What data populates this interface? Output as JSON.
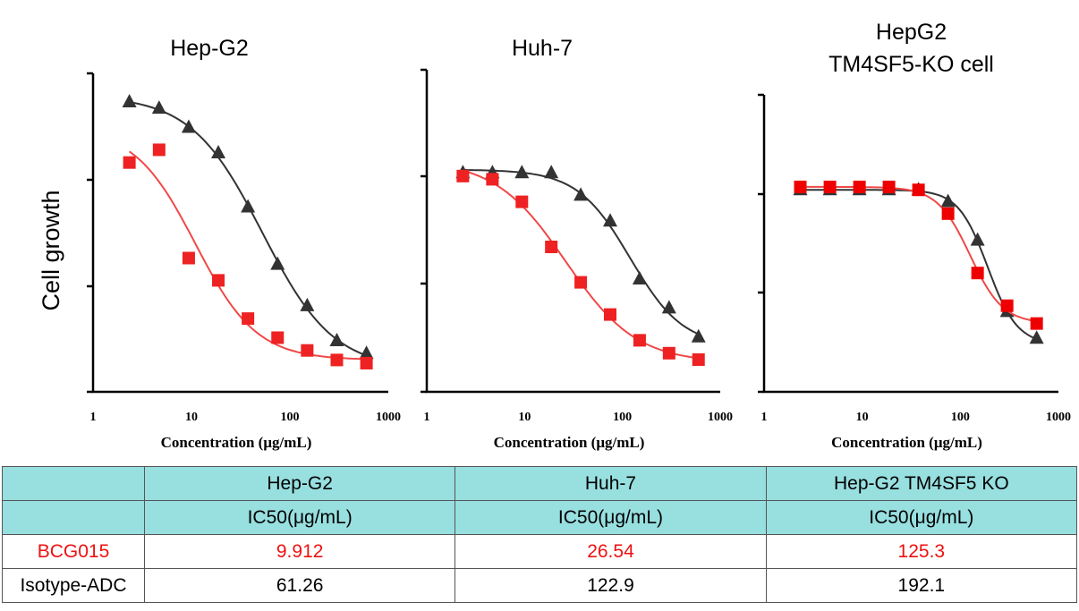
{
  "chart_data": [
    {
      "type": "scatter",
      "title": "Hep-G2",
      "xlabel": "Concentration (μg/mL)",
      "ylabel": "Cell growth",
      "xscale": "log",
      "xlim": [
        1,
        1000
      ],
      "x_ticks": [
        "1",
        "10",
        "100",
        "1000"
      ],
      "y_tick_labels_shown": false,
      "series": [
        {
          "name": "Isotype-ADC",
          "marker": "triangle",
          "color": "#333333",
          "x": [
            2.34,
            4.69,
            9.38,
            18.75,
            37.5,
            75,
            150,
            300,
            600
          ],
          "y": [
            0.91,
            0.89,
            0.83,
            0.75,
            0.58,
            0.4,
            0.27,
            0.16,
            0.12
          ]
        },
        {
          "name": "BCG015",
          "marker": "square",
          "color": "#ee2222",
          "x": [
            2.34,
            4.69,
            9.38,
            18.75,
            37.5,
            75,
            150,
            300,
            600
          ],
          "y": [
            0.72,
            0.76,
            0.42,
            0.35,
            0.23,
            0.17,
            0.13,
            0.1,
            0.09
          ]
        }
      ]
    },
    {
      "type": "scatter",
      "title": "Huh-7",
      "xlabel": "Concentration (μg/mL)",
      "xscale": "log",
      "xlim": [
        1,
        1000
      ],
      "x_ticks": [
        "1",
        "10",
        "100",
        "1000"
      ],
      "y_tick_labels_shown": false,
      "series": [
        {
          "name": "Isotype-ADC",
          "marker": "triangle",
          "color": "#333333",
          "x": [
            2.34,
            4.69,
            9.38,
            18.75,
            37.5,
            75,
            150,
            300,
            600
          ],
          "y": [
            0.68,
            0.68,
            0.68,
            0.68,
            0.61,
            0.53,
            0.35,
            0.26,
            0.17
          ]
        },
        {
          "name": "BCG015",
          "marker": "square",
          "color": "#ee2222",
          "x": [
            2.34,
            4.69,
            9.38,
            18.75,
            37.5,
            75,
            150,
            300,
            600
          ],
          "y": [
            0.67,
            0.66,
            0.59,
            0.45,
            0.34,
            0.24,
            0.16,
            0.12,
            0.1
          ]
        }
      ]
    },
    {
      "type": "scatter",
      "title": "HepG2\nTM4SF5-KO cell",
      "xlabel": "Concentration (μg/mL)",
      "xscale": "log",
      "xlim": [
        1,
        1000
      ],
      "x_ticks": [
        "1",
        "10",
        "100",
        "1000"
      ],
      "y_tick_labels_shown": false,
      "series": [
        {
          "name": "Isotype-ADC",
          "marker": "triangle",
          "color": "#333333",
          "x": [
            2.34,
            4.69,
            9.38,
            18.75,
            37.5,
            75,
            150,
            300,
            600
          ],
          "y": [
            0.68,
            0.68,
            0.68,
            0.68,
            0.68,
            0.64,
            0.51,
            0.27,
            0.18
          ]
        },
        {
          "name": "BCG015",
          "marker": "square",
          "color": "#ee0000",
          "x": [
            2.34,
            4.69,
            9.38,
            18.75,
            37.5,
            75,
            150,
            300,
            600
          ],
          "y": [
            0.69,
            0.69,
            0.69,
            0.69,
            0.68,
            0.6,
            0.4,
            0.29,
            0.23
          ]
        }
      ]
    }
  ],
  "table": {
    "columns": [
      "Hep-G2",
      "Huh-7",
      "Hep-G2 TM4SF5 KO"
    ],
    "metric": "IC50(μg/mL)",
    "rows": [
      {
        "name": "BCG015",
        "values": [
          "9.912",
          "26.54",
          "125.3"
        ]
      },
      {
        "name": "Isotype-ADC",
        "values": [
          "61.26",
          "122.9",
          "192.1"
        ]
      }
    ]
  },
  "colors": {
    "header_fill": "#98dfe0",
    "bcg015_text": "#ee1111",
    "isotype_marker": "#333333",
    "bcg015_marker": "#ee2222"
  }
}
